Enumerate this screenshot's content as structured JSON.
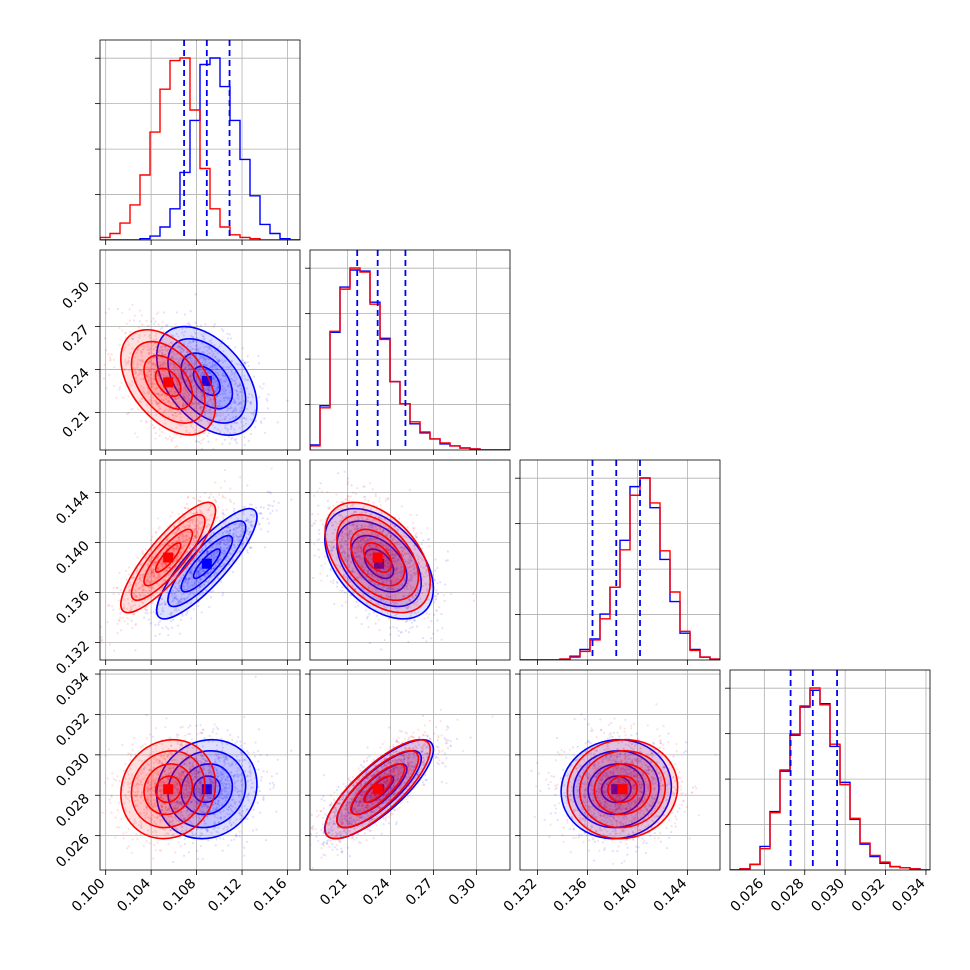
{
  "chart_data": {
    "type": "corner",
    "parameters": [
      {
        "ticks": [
          "0.100",
          "0.104",
          "0.108",
          "0.112",
          "0.116"
        ],
        "tick_values": [
          0.1,
          0.104,
          0.108,
          0.112,
          0.116
        ],
        "range": [
          0.0995,
          0.1171
        ]
      },
      {
        "ticks": [
          "0.21",
          "0.24",
          "0.27",
          "0.30"
        ],
        "tick_values": [
          0.21,
          0.24,
          0.27,
          0.3
        ],
        "range": [
          0.1837,
          0.3235
        ]
      },
      {
        "ticks": [
          "0.132",
          "0.136",
          "0.140",
          "0.144"
        ],
        "tick_values": [
          0.132,
          0.136,
          0.14,
          0.144
        ],
        "range": [
          0.1306,
          0.1466
        ]
      },
      {
        "ticks": [
          "0.026",
          "0.028",
          "0.030",
          "0.032",
          "0.034"
        ],
        "tick_values": [
          0.026,
          0.028,
          0.03,
          0.032,
          0.034
        ],
        "range": [
          0.0243,
          0.0342
        ]
      }
    ],
    "quantile_lines": [
      [
        0.1069,
        0.1089,
        0.1109
      ],
      [
        0.2167,
        0.231,
        0.2504
      ],
      [
        0.1364,
        0.1383,
        0.1402
      ],
      [
        0.0273,
        0.0284,
        0.0296
      ]
    ],
    "series": [
      {
        "color": "#0000ff",
        "means": [
          0.1089,
          0.232,
          0.1383,
          0.0283
        ],
        "sigmas": [
          0.0018,
          0.0155,
          0.0018,
          0.001
        ],
        "histograms": [
          [
            0,
            0,
            0,
            0,
            1,
            3,
            10,
            24,
            52,
            92,
            135,
            140,
            118,
            92,
            62,
            34,
            12,
            5,
            1,
            0
          ],
          [
            5,
            44,
            117,
            162,
            179,
            178,
            147,
            111,
            68,
            46,
            26,
            17,
            11,
            6,
            4,
            2,
            1,
            0,
            0,
            0
          ],
          [
            0,
            0,
            0,
            0,
            1,
            4,
            11,
            22,
            48,
            76,
            125,
            181,
            190,
            159,
            105,
            61,
            28,
            11,
            3,
            1
          ],
          [
            0,
            1,
            5,
            21,
            52,
            88,
            120,
            145,
            160,
            148,
            110,
            78,
            45,
            23,
            12,
            6,
            3,
            2,
            1,
            0
          ]
        ],
        "correlations": [
          [
            1,
            -0.45,
            0.85,
            0.1
          ],
          [
            -0.45,
            1,
            -0.45,
            0.8
          ],
          [
            0.85,
            -0.45,
            1,
            0.05
          ],
          [
            0.1,
            0.8,
            0.05,
            1
          ]
        ]
      },
      {
        "color": "#ff0000",
        "means": [
          0.1055,
          0.231,
          0.1388,
          0.0283
        ],
        "sigmas": [
          0.0017,
          0.015,
          0.0018,
          0.001
        ],
        "histograms": [
          [
            2,
            5,
            13,
            27,
            50,
            83,
            116,
            138,
            140,
            100,
            55,
            24,
            10,
            4,
            2,
            1,
            0,
            0,
            0,
            0
          ],
          [
            4,
            42,
            118,
            160,
            181,
            177,
            145,
            110,
            68,
            46,
            28,
            18,
            11,
            7,
            4,
            2,
            1,
            0,
            0,
            0
          ],
          [
            0,
            0,
            0,
            0,
            1,
            3,
            9,
            21,
            43,
            76,
            115,
            172,
            190,
            164,
            114,
            71,
            30,
            10,
            3,
            1
          ],
          [
            0,
            1,
            5,
            19,
            51,
            89,
            121,
            146,
            162,
            147,
            112,
            76,
            46,
            24,
            13,
            7,
            3,
            2,
            1,
            0
          ]
        ],
        "correlations": [
          [
            1,
            -0.45,
            0.85,
            0.1
          ],
          [
            -0.45,
            1,
            -0.45,
            0.8
          ],
          [
            0.85,
            -0.45,
            1,
            0.05
          ],
          [
            0.1,
            0.8,
            0.05,
            1
          ]
        ]
      }
    ],
    "grid": true,
    "colors": {
      "series_a": "#0000ff",
      "series_b": "#ff0000",
      "grid": "#b0b0b0",
      "frame": "#000000"
    }
  }
}
